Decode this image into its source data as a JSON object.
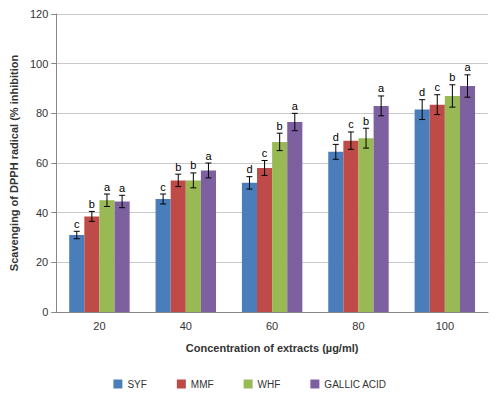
{
  "chart_data": {
    "type": "bar",
    "x_label": "Concentration of extracts (µg/ml)",
    "y_label": "Scavenging of DPPH radical (% inhibition",
    "categories": [
      "20",
      "40",
      "60",
      "80",
      "100"
    ],
    "series": [
      {
        "name": "SYF",
        "color": "#4a7ebb",
        "values": [
          31,
          45.5,
          52,
          64.5,
          81.5
        ],
        "errors": [
          1.5,
          2,
          2.5,
          3,
          4
        ],
        "annotations": [
          "c",
          "c",
          "d",
          "d",
          "d"
        ]
      },
      {
        "name": "MMF",
        "color": "#be4b48",
        "values": [
          38.5,
          53,
          58,
          69,
          83.5
        ],
        "errors": [
          2,
          2.5,
          3,
          3.5,
          4
        ],
        "annotations": [
          "b",
          "b",
          "c",
          "c",
          "c"
        ]
      },
      {
        "name": "WHF",
        "color": "#98b954",
        "values": [
          45,
          53,
          68.5,
          70,
          87
        ],
        "errors": [
          2.5,
          3,
          3.5,
          4,
          4.5
        ],
        "annotations": [
          "a",
          "b",
          "b",
          "b",
          "b"
        ]
      },
      {
        "name": "GALLIC ACID",
        "color": "#7d60a0",
        "values": [
          44.5,
          57,
          76.5,
          83,
          91
        ],
        "errors": [
          2.5,
          3,
          3.5,
          4,
          4.5
        ],
        "annotations": [
          "a",
          "a",
          "a",
          "a",
          "a"
        ]
      }
    ],
    "ylim": [
      0,
      120
    ],
    "yticks": [
      0,
      20,
      40,
      60,
      80,
      100,
      120
    ],
    "grid": true,
    "legend": "bottom"
  }
}
